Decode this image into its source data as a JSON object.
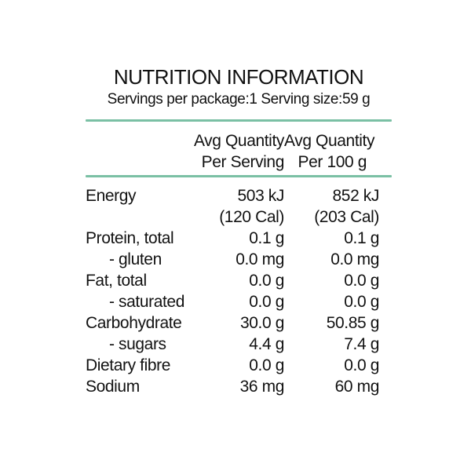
{
  "label": {
    "title": "NUTRITION INFORMATION",
    "subtitle": "Servings per package:1 Serving size:59 g",
    "accent_color": "#7ac0a4",
    "text_color": "#111111",
    "columns": [
      {
        "line1": "Avg Quantity",
        "line2": "Per Serving"
      },
      {
        "line1": "Avg Quantity",
        "line2": "Per 100 g"
      }
    ],
    "rows": [
      {
        "label": "Energy",
        "per_serving": "503 kJ",
        "per_100g": "852 kJ"
      },
      {
        "label": "",
        "per_serving": "(120 Cal)",
        "per_100g": "(203 Cal)"
      },
      {
        "label": "Protein, total",
        "per_serving": "0.1 g",
        "per_100g": "0.1 g"
      },
      {
        "label": "- gluten",
        "per_serving": "0.0 mg",
        "per_100g": "0.0 mg"
      },
      {
        "label": "Fat, total",
        "per_serving": "0.0 g",
        "per_100g": "0.0 g"
      },
      {
        "label": "- saturated",
        "per_serving": "0.0 g",
        "per_100g": "0.0 g"
      },
      {
        "label": "Carbohydrate",
        "per_serving": "30.0 g",
        "per_100g": "50.85 g"
      },
      {
        "label": "- sugars",
        "per_serving": "4.4 g",
        "per_100g": "7.4 g"
      },
      {
        "label": "Dietary fibre",
        "per_serving": "0.0 g",
        "per_100g": "0.0 g"
      },
      {
        "label": "Sodium",
        "per_serving": "36 mg",
        "per_100g": "60 mg"
      }
    ]
  }
}
